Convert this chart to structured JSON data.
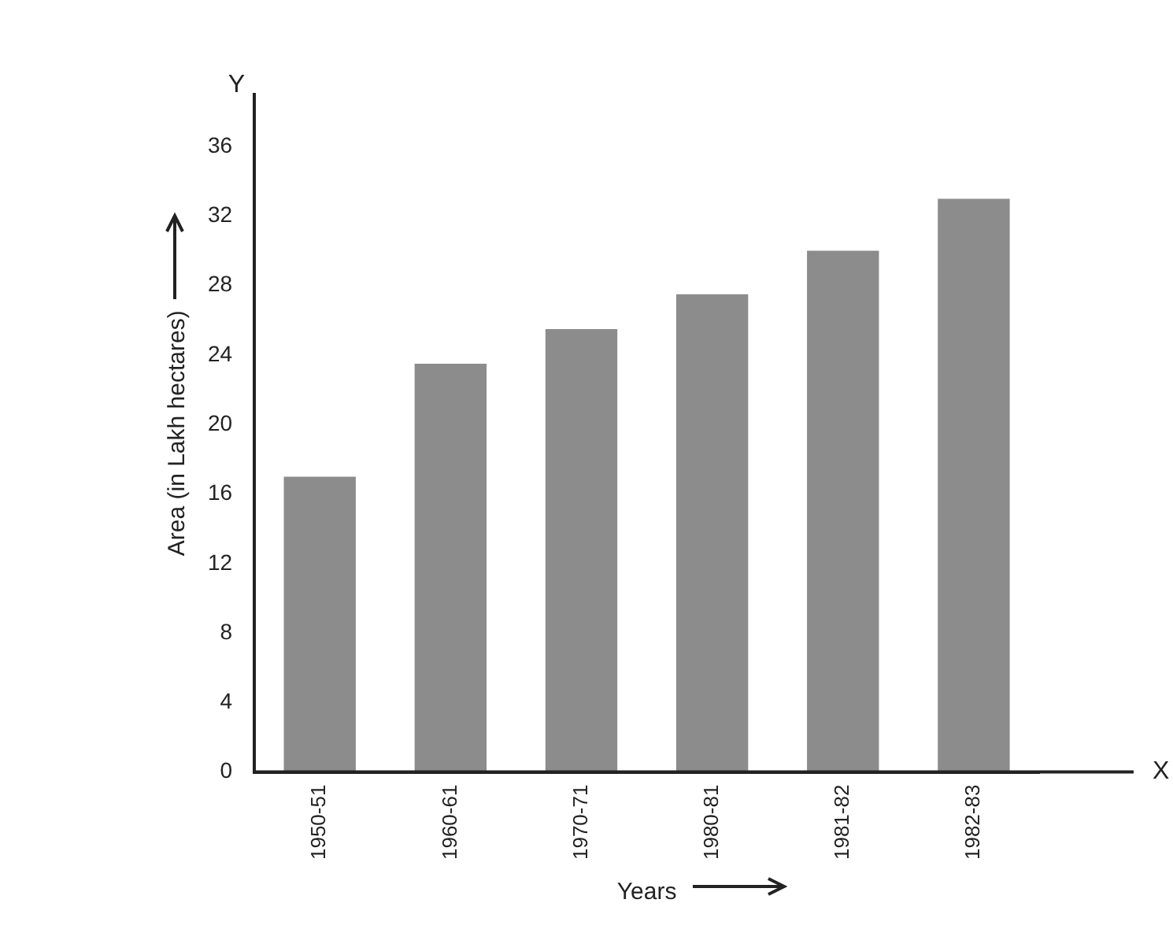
{
  "chart_data": {
    "type": "bar",
    "xlabel": "Years",
    "ylabel": "Area (in Lakh hectares)",
    "categories": [
      "1950-51",
      "1960-61",
      "1970-71",
      "1980-81",
      "1981-82",
      "1982-83"
    ],
    "values": [
      17,
      23.5,
      25.5,
      27.5,
      30,
      33
    ],
    "color": "#8c8c8c",
    "ylim": [
      0,
      39
    ],
    "yticks": [
      0,
      4,
      8,
      12,
      16,
      20,
      24,
      28,
      32,
      36
    ],
    "grid": false,
    "legend": false,
    "annotations": [
      "Y",
      "X"
    ]
  }
}
